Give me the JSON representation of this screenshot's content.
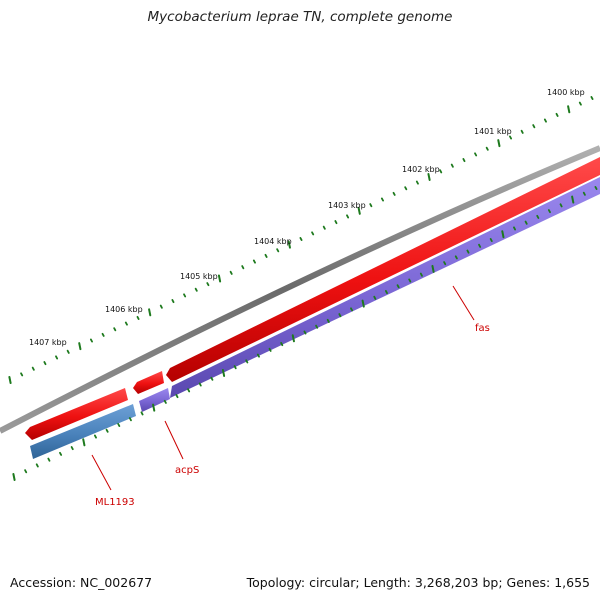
{
  "title": "Mycobacterium leprae TN, complete genome",
  "footer": {
    "accession": "Accession: NC_002677",
    "summary": "Topology: circular; Length: 3,268,203 bp; Genes: 1,655"
  },
  "colors": {
    "backbone": "#777777",
    "forward_gene": "#ee1111",
    "reverse_gene_blue": "#4a82bb",
    "reverse_gene_purple": "#7a66d4",
    "ticks": "#1e7a1e",
    "gene_label": "#cc0000"
  },
  "ruler": [
    {
      "label": "1400 kbp"
    },
    {
      "label": "1401 kbp"
    },
    {
      "label": "1402 kbp"
    },
    {
      "label": "1403 kbp"
    },
    {
      "label": "1404 kbp"
    },
    {
      "label": "1405 kbp"
    },
    {
      "label": "1406 kbp"
    },
    {
      "label": "1407 kbp"
    }
  ],
  "genes": [
    {
      "name": "fas",
      "strand": "reverse"
    },
    {
      "name": "acpS",
      "strand": "reverse"
    },
    {
      "name": "ML1193",
      "strand": "reverse"
    }
  ]
}
